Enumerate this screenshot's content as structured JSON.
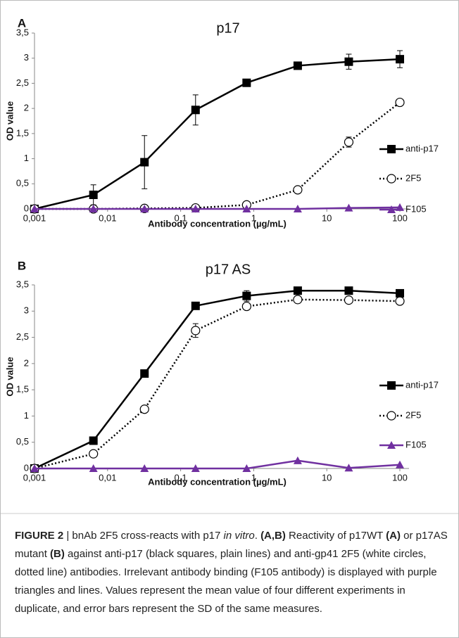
{
  "chart_data": [
    {
      "type": "line",
      "panel": "A",
      "title": "p17",
      "y_label": "OD value",
      "x_label": "Antibody concentration (µg/mL)",
      "xscale": "log",
      "x": [
        0.001,
        0.0064,
        0.032,
        0.16,
        0.8,
        4,
        20,
        100
      ],
      "xlim": [
        0.001,
        100
      ],
      "xticks": [
        {
          "value": 0.001,
          "label": "0,001"
        },
        {
          "value": 0.01,
          "label": "0,01"
        },
        {
          "value": 0.1,
          "label": "0,1"
        },
        1,
        10,
        100
      ],
      "ylim": [
        0,
        3.5
      ],
      "yticks": [
        0,
        {
          "value": 0.5,
          "label": "0,5"
        },
        1,
        {
          "value": 1.5,
          "label": "1,5"
        },
        2,
        {
          "value": 2.5,
          "label": "2,5"
        },
        3,
        {
          "value": 3.5,
          "label": "3,5"
        }
      ],
      "series": [
        {
          "name": "anti-p17",
          "color": "#000000",
          "marker": "square",
          "dashed": false,
          "values": [
            0,
            0.28,
            0.93,
            1.97,
            2.51,
            2.85,
            2.93,
            2.98
          ],
          "errors": [
            0,
            0.2,
            0.53,
            0.3,
            0,
            0.03,
            0.15,
            0.17
          ]
        },
        {
          "name": "2F5",
          "color": "#000000",
          "marker": "circle",
          "dashed": true,
          "values": [
            0,
            0,
            0.01,
            0.02,
            0.08,
            0.38,
            1.33,
            2.12
          ],
          "errors": [
            0,
            0,
            0,
            0,
            0,
            0,
            0.1,
            0.03
          ]
        },
        {
          "name": "F105",
          "color": "#7030a0",
          "marker": "triangle",
          "dashed": false,
          "values": [
            0,
            0,
            0,
            0,
            0,
            0,
            0.02,
            0.03
          ]
        }
      ]
    },
    {
      "type": "line",
      "panel": "B",
      "title": "p17 AS",
      "y_label": "OD value",
      "x_label": "Antibody concentration (µg/mL)",
      "xscale": "log",
      "x": [
        0.001,
        0.0064,
        0.032,
        0.16,
        0.8,
        4,
        20,
        100
      ],
      "xlim": [
        0.001,
        100
      ],
      "xticks": [
        {
          "value": 0.001,
          "label": "0,001"
        },
        {
          "value": 0.01,
          "label": "0,01"
        },
        {
          "value": 0.1,
          "label": "0,1"
        },
        1,
        10,
        100
      ],
      "ylim": [
        0,
        3.5
      ],
      "yticks": [
        0,
        {
          "value": 0.5,
          "label": "0,5"
        },
        1,
        {
          "value": 1.5,
          "label": "1,5"
        },
        2,
        {
          "value": 2.5,
          "label": "2,5"
        },
        3,
        {
          "value": 3.5,
          "label": "3,5"
        }
      ],
      "series": [
        {
          "name": "anti-p17",
          "color": "#000000",
          "marker": "square",
          "dashed": false,
          "values": [
            0,
            0.53,
            1.81,
            3.1,
            3.29,
            3.39,
            3.39,
            3.34
          ],
          "errors": [
            0,
            0,
            0,
            0,
            0.1,
            0,
            0,
            0
          ]
        },
        {
          "name": "2F5",
          "color": "#000000",
          "marker": "circle",
          "dashed": true,
          "values": [
            0,
            0.28,
            1.13,
            2.63,
            3.09,
            3.22,
            3.21,
            3.19
          ],
          "errors": [
            0,
            0,
            0,
            0.13,
            0,
            0,
            0,
            0
          ]
        },
        {
          "name": "F105",
          "color": "#7030a0",
          "marker": "triangle",
          "dashed": false,
          "values": [
            0,
            0,
            0,
            0,
            0,
            0.15,
            0.01,
            0.07
          ]
        }
      ]
    }
  ],
  "caption": [
    {
      "text": "FIGURE 2",
      "style": "bold"
    },
    {
      "text": " | bnAb 2F5 cross-reacts with p17 ",
      "style": "normal"
    },
    {
      "text": "in vitro",
      "style": "italic"
    },
    {
      "text": ". ",
      "style": "normal"
    },
    {
      "text": "(A,B)",
      "style": "bold"
    },
    {
      "text": " Reactivity of p17WT ",
      "style": "normal"
    },
    {
      "text": "(A)",
      "style": "bold"
    },
    {
      "text": " or p17AS mutant ",
      "style": "normal"
    },
    {
      "text": "(B)",
      "style": "bold"
    },
    {
      "text": " against anti-p17 (black squares, plain lines) and anti-gp41 2F5 (white circles, dotted line) antibodies. Irrelevant antibody binding (F105 antibody) is displayed with purple triangles and lines. Values represent the mean value of four different experiments in duplicate, and error bars represent the SD of the same measures.",
      "style": "normal"
    }
  ]
}
